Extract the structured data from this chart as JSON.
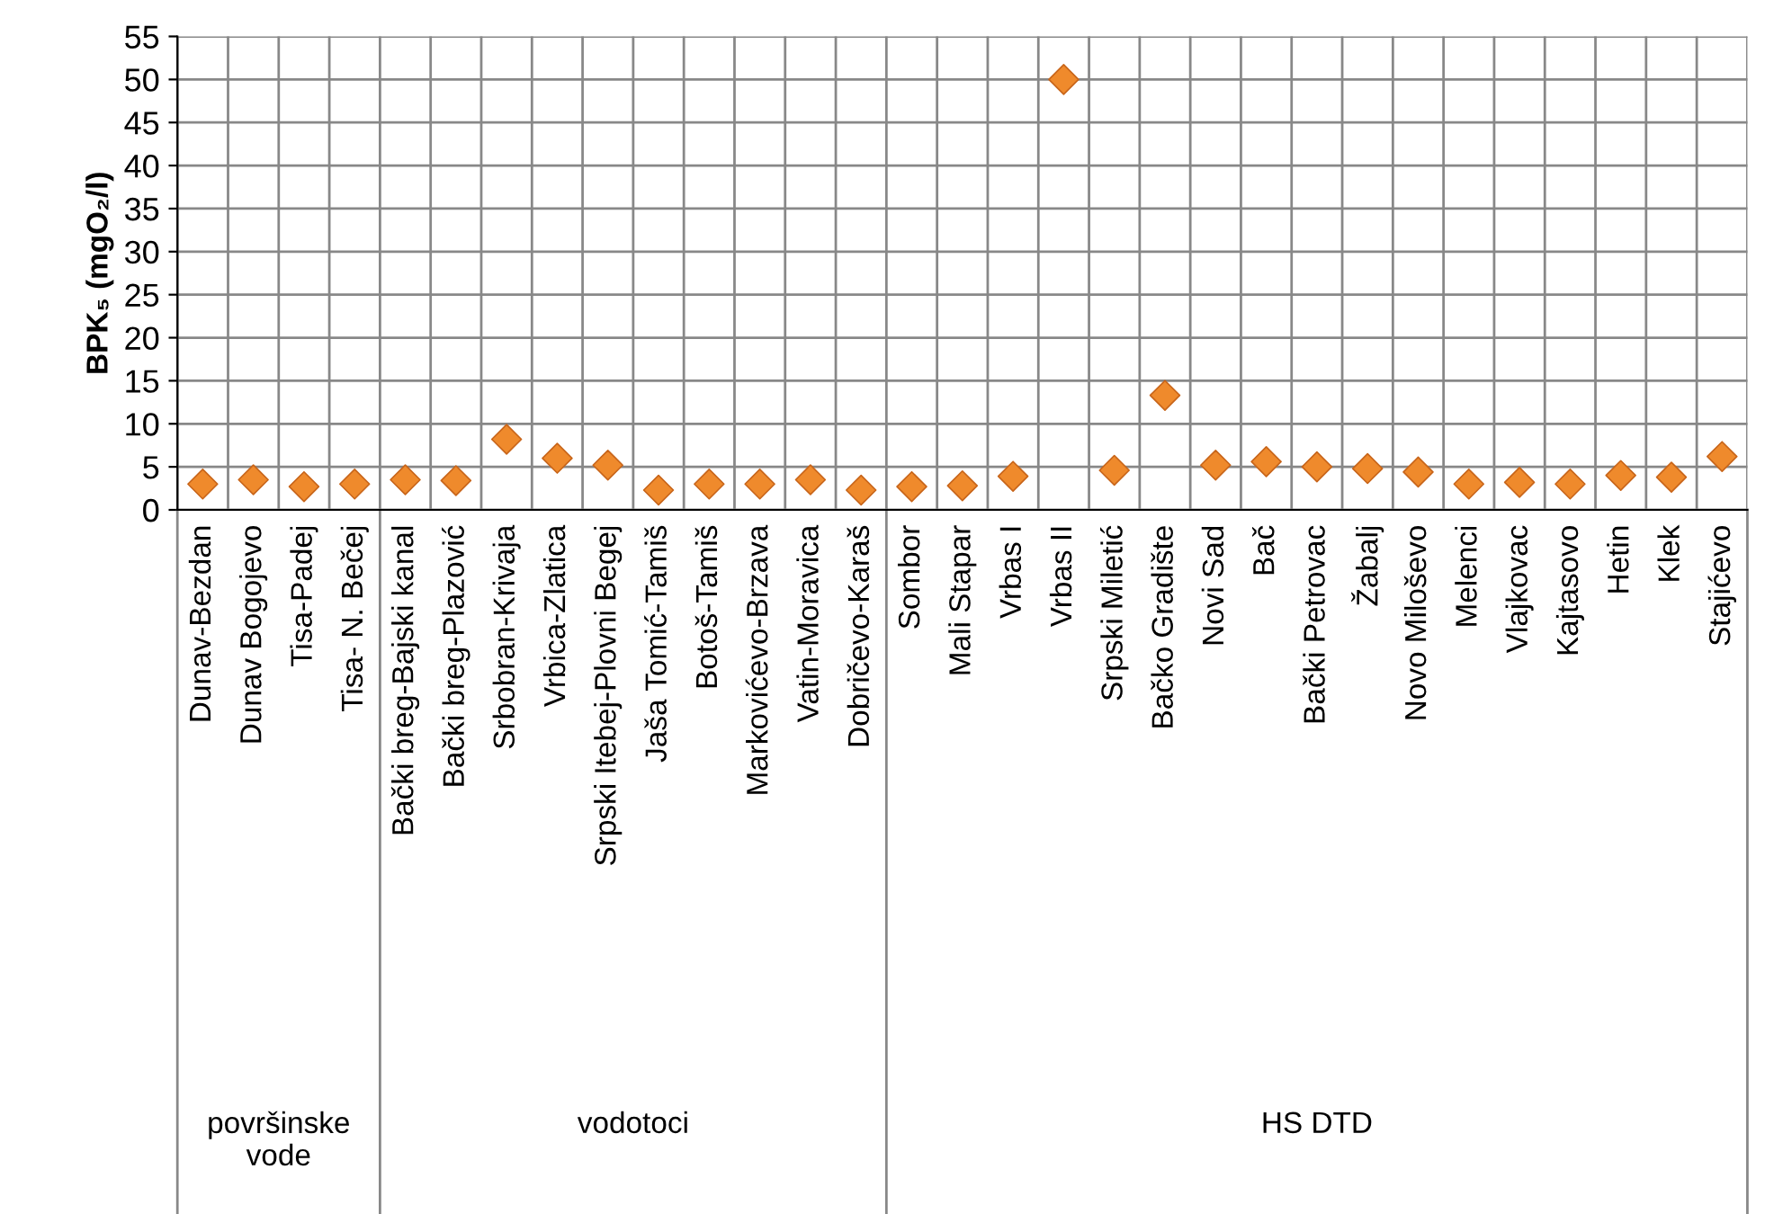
{
  "chart_data": {
    "type": "scatter",
    "ylabel": "BPK₅ (mgO₂/l)",
    "categories": [
      "Dunav-Bezdan",
      "Dunav Bogojevo",
      "Tisa-Padej",
      "Tisa- N. Bečej",
      "Bački breg-Bajski kanal",
      "Bački breg-Plazović",
      "Srbobran-Krivaja",
      "Vrbica-Zlatica",
      "Srpski Itebej-Plovni Begej",
      "Jaša Tomić-Tamiš",
      "Botoš-Tamiš",
      "Markovićevo-Brzava",
      "Vatin-Moravica",
      "Dobričevo-Karaš",
      "Sombor",
      "Mali Stapar",
      "Vrbas I",
      "Vrbas II",
      "Srpski Miletić",
      "Bačko Gradište",
      "Novi Sad",
      "Bač",
      "Bački Petrovac",
      "Žabalj",
      "Novo Miloševo",
      "Melenci",
      "Vlajkovac",
      "Kajtasovo",
      "Hetin",
      "Klek",
      "Stajićevo"
    ],
    "series": [
      {
        "color": "#ef8a2c",
        "values": [
          3,
          3.5,
          2.7,
          3,
          3.5,
          3.4,
          8.2,
          6,
          5.2,
          2.3,
          3,
          3,
          3.5,
          2.3,
          2.7,
          2.8,
          3.9,
          50,
          4.6,
          13.3,
          5.2,
          5.6,
          5,
          4.8,
          4.4,
          3,
          3.2,
          3,
          4,
          3.8,
          6.2
        ]
      }
    ],
    "ylim": [
      0,
      55
    ],
    "yticks": [
      0,
      5,
      10,
      15,
      20,
      25,
      30,
      35,
      40,
      45,
      50,
      55
    ],
    "grid": true,
    "marker": "diamond",
    "annotations": [
      "površinske\nvode",
      "vodotoci",
      "HS DTD"
    ]
  }
}
